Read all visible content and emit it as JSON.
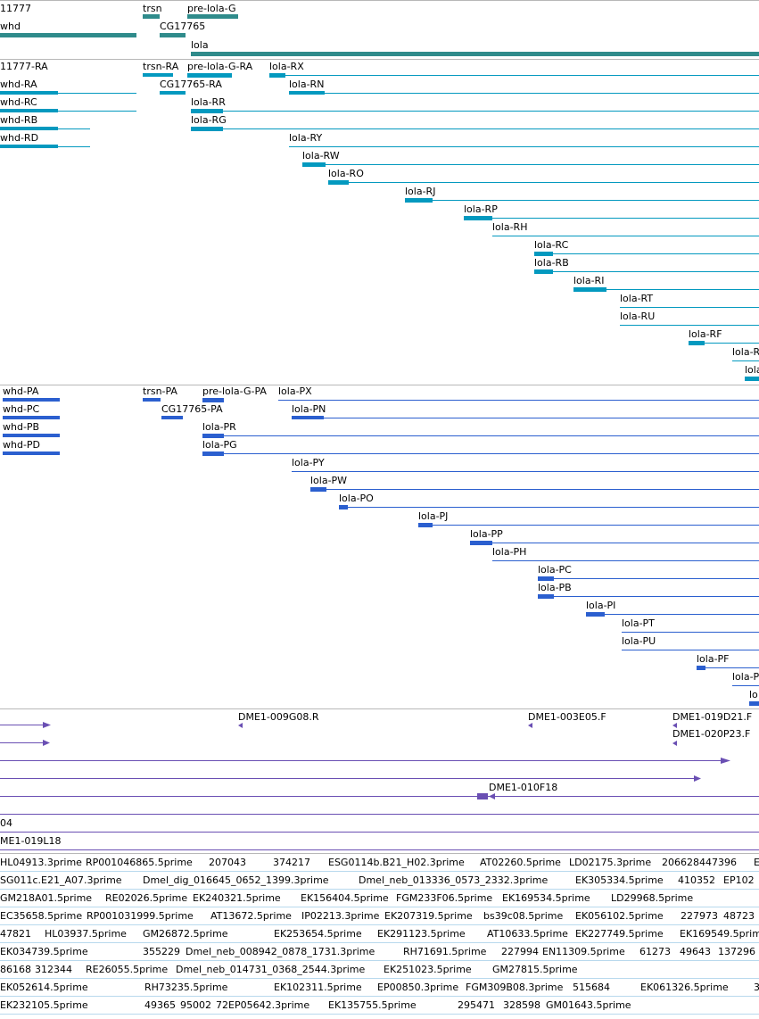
{
  "colors": {
    "gene": "#2f8b8b",
    "transcript_ra": "#0399bf",
    "transcript_pa": "#2b5fcf",
    "cdna": "#6a4fb3",
    "est": "#7eb9de"
  },
  "genes": [
    "11777",
    "trsn",
    "pre-lola-G",
    "whd",
    "CG17765",
    "lola"
  ],
  "transcripts_r": [
    "11777-RA",
    "trsn-RA",
    "pre-lola-G-RA",
    "lola-RX",
    "whd-RA",
    "lola-RN",
    "CG17765-RA",
    "whd-RC",
    "lola-RR",
    "whd-RB",
    "lola-RG",
    "whd-RD",
    "lola-RY",
    "lola-RW",
    "lola-RO",
    "lola-RJ",
    "lola-RP",
    "lola-RH",
    "lola-RC",
    "lola-RB",
    "lola-RI",
    "lola-RT",
    "lola-RU",
    "lola-RF",
    "lola-R",
    "lola"
  ],
  "transcripts_p": [
    "whd-PA",
    "trsn-PA",
    "pre-lola-G-PA",
    "lola-PX",
    "whd-PC",
    "CG17765-PA",
    "lola-PN",
    "whd-PB",
    "lola-PR",
    "whd-PD",
    "lola-PG",
    "lola-PY",
    "lola-PW",
    "lola-PO",
    "lola-PJ",
    "lola-PP",
    "lola-PH",
    "lola-PC",
    "lola-PB",
    "lola-PI",
    "lola-PT",
    "lola-PU",
    "lola-PF",
    "lola-P",
    "lo"
  ],
  "cdna": [
    "DME1-009G08.R",
    "DME1-003E05.F",
    "DME1-019D21.F",
    "DME1-020P23.F",
    "DME1-010F18",
    "04",
    "ME1-019L18"
  ],
  "est_rows": [
    [
      "HL04913.3prime",
      "RP001046865.5prime",
      "207043",
      "374217",
      "ESG0114b.B21_H02.3prime",
      "AT02260.5prime",
      "LD02175.3prime",
      "206628447396",
      "E"
    ],
    [
      "SG011c.E21_A07.3prime",
      "Dmel_dig_016645_0652_1399.3prime",
      "Dmel_neb_013336_0573_2332.3prime",
      "EK305334.5prime",
      "410352",
      "EP102"
    ],
    [
      "GM218A01.5prime",
      "RE02026.5prime",
      "EK240321.5prime",
      "EK156404.5prime",
      "FGM233F06.5prime",
      "EK169534.5prime",
      "LD29968.5prime"
    ],
    [
      "EC35658.5prime",
      "RP001031999.5prime",
      "AT13672.5prime",
      "IP02213.3prime",
      "EK207319.5prime",
      "bs39c08.5prime",
      "EK056102.5prime",
      "227973",
      "48723"
    ],
    [
      "47821",
      "HL03937.5prime",
      "GM26872.5prime",
      "EK253654.5prime",
      "EK291123.5prime",
      "AT10633.5prime",
      "EK227749.5prime",
      "EK169549.5prim"
    ],
    [
      "EK034739.5prime",
      "355229",
      "Dmel_neb_008942_0878_1731.3prime",
      "RH71691.5prime",
      "227994",
      "EN11309.5prime",
      "61273",
      "49643",
      "137296"
    ],
    [
      "86168",
      "312344",
      "RE26055.5prime",
      "Dmel_neb_014731_0368_2544.3prime",
      "EK251023.5prime",
      "GM27815.5prime"
    ],
    [
      "EK052614.5prime",
      "RH73235.5prime",
      "EK102311.5prime",
      "EP00850.3prime",
      "FGM309B08.3prime",
      "515684",
      "EK061326.5prime",
      "3"
    ],
    [
      "EK232105.5prime",
      "49365",
      "95002",
      "72",
      "EP05642.3prime",
      "EK135755.5prime",
      "295471",
      "328598",
      "GM01643.5prime"
    ]
  ]
}
